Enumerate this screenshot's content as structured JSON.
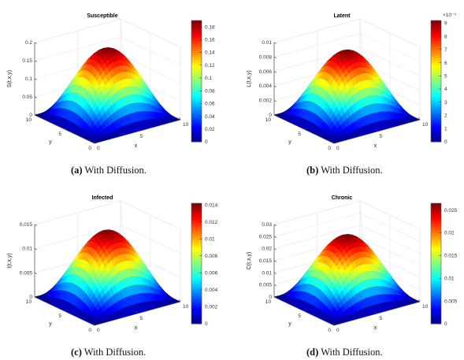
{
  "captions": [
    {
      "letter": "(a)",
      "text": "With Diffusion."
    },
    {
      "letter": "(b)",
      "text": "With Diffusion."
    },
    {
      "letter": "(c)",
      "text": "With Diffusion."
    },
    {
      "letter": "(d)",
      "text": "With Diffusion."
    }
  ],
  "chart_data": [
    {
      "type": "surface",
      "title": "Susceptible",
      "xlabel": "x",
      "ylabel": "y",
      "zlabel": "S(t,x,y)",
      "xlim": [
        0,
        10
      ],
      "ylim": [
        0,
        10
      ],
      "zlim": [
        0,
        0.2
      ],
      "x_ticks": [
        "0",
        "5",
        "10"
      ],
      "y_ticks": [
        "0",
        "5",
        "10"
      ],
      "z_ticks": [
        "0",
        "0.05",
        "0.1",
        "0.15",
        "0.2"
      ],
      "peak": 0.19,
      "colorbar_range": [
        0,
        0.19
      ],
      "colorbar_ticks": [
        "0.18",
        "0.16",
        "0.14",
        "0.12",
        "0.1",
        "0.08",
        "0.06",
        "0.04",
        "0.02",
        "0"
      ],
      "colorbar_exponent": ""
    },
    {
      "type": "surface",
      "title": "Latent",
      "xlabel": "x",
      "ylabel": "y",
      "zlabel": "L(t,x,y)",
      "xlim": [
        0,
        10
      ],
      "ylim": [
        0,
        10
      ],
      "zlim": [
        0,
        0.01
      ],
      "x_ticks": [
        "0",
        "5",
        "10"
      ],
      "y_ticks": [
        "0",
        "5",
        "10"
      ],
      "z_ticks": [
        "0",
        "0.002",
        "0.004",
        "0.006",
        "0.008",
        "0.01"
      ],
      "peak": 0.0092,
      "colorbar_range": [
        0,
        0.0092
      ],
      "colorbar_ticks": [
        "9",
        "8",
        "7",
        "6",
        "5",
        "4",
        "3",
        "2",
        "1",
        "0"
      ],
      "colorbar_exponent": "×10⁻³"
    },
    {
      "type": "surface",
      "title": "Infected",
      "xlabel": "x",
      "ylabel": "y",
      "zlabel": "I(t,x,y)",
      "xlim": [
        0,
        10
      ],
      "ylim": [
        0,
        10
      ],
      "zlim": [
        0,
        0.015
      ],
      "x_ticks": [
        "0",
        "5",
        "10"
      ],
      "y_ticks": [
        "0",
        "5",
        "10"
      ],
      "z_ticks": [
        "0",
        "0.005",
        "0.01",
        "0.015"
      ],
      "peak": 0.0142,
      "colorbar_range": [
        0,
        0.0142
      ],
      "colorbar_ticks": [
        "0.014",
        "0.012",
        "0.01",
        "0.008",
        "0.006",
        "0.004",
        "0.002",
        "0"
      ],
      "colorbar_exponent": ""
    },
    {
      "type": "surface",
      "title": "Chronic",
      "xlabel": "x",
      "ylabel": "y",
      "zlabel": "C(t,x,y)",
      "xlim": [
        0,
        10
      ],
      "ylim": [
        0,
        10
      ],
      "zlim": [
        0,
        0.03
      ],
      "x_ticks": [
        "0",
        "5",
        "10"
      ],
      "y_ticks": [
        "0",
        "5",
        "10"
      ],
      "z_ticks": [
        "0",
        "0.005",
        "0.01",
        "0.015",
        "0.02",
        "0.025",
        "0.03"
      ],
      "peak": 0.0265,
      "colorbar_range": [
        0,
        0.0265
      ],
      "colorbar_ticks": [
        "0.025",
        "0.02",
        "0.015",
        "0.01",
        "0.005",
        "0"
      ],
      "colorbar_exponent": ""
    }
  ]
}
